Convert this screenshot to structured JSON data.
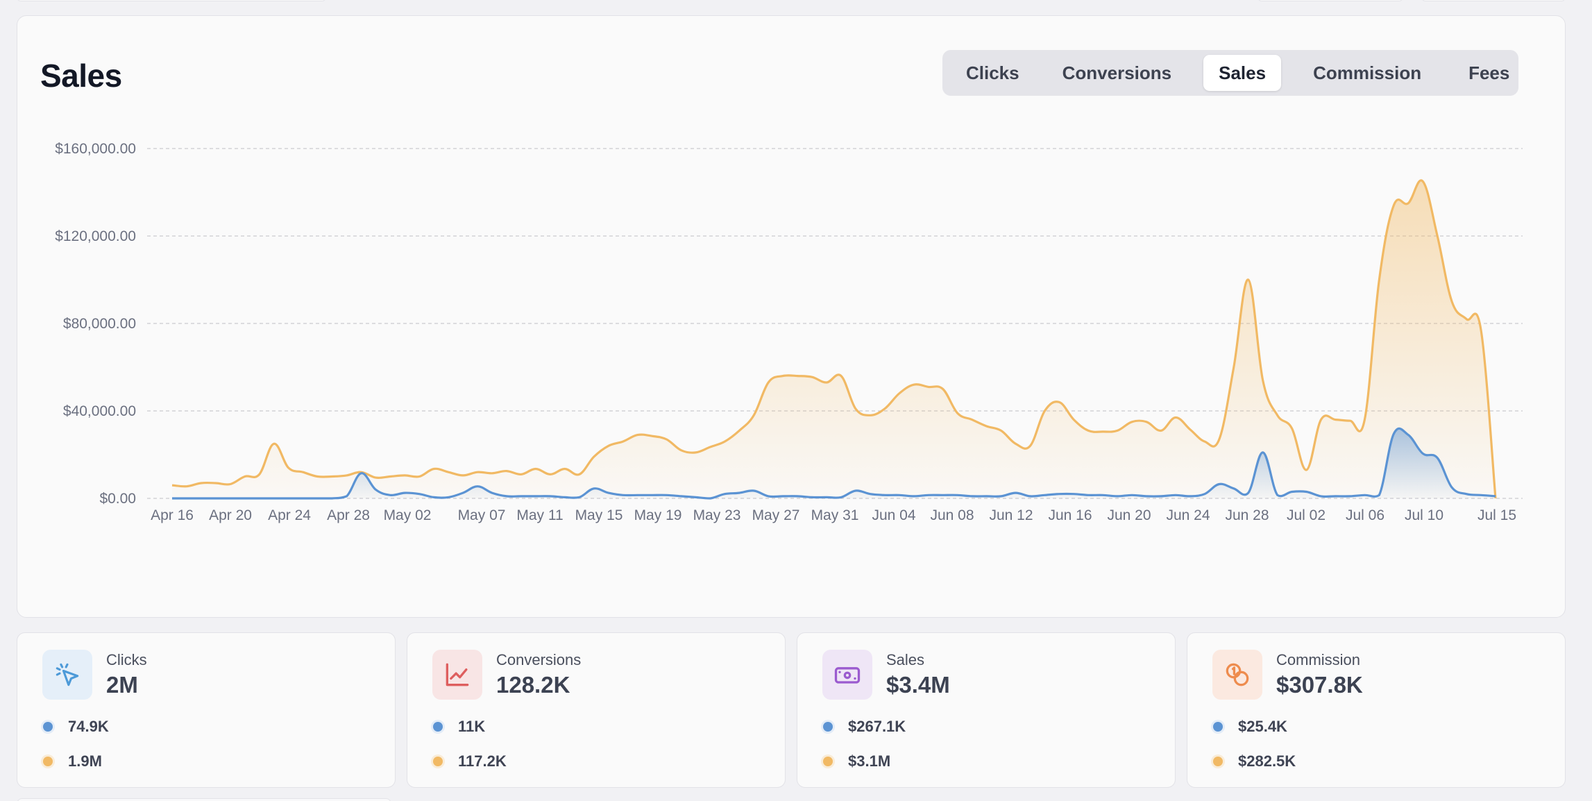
{
  "card": {
    "title": "Sales"
  },
  "tabs": [
    {
      "label": "Clicks"
    },
    {
      "label": "Conversions"
    },
    {
      "label": "Sales",
      "active": true
    },
    {
      "label": "Commission"
    },
    {
      "label": "Fees"
    }
  ],
  "colors": {
    "series_blue": "#5b93d3",
    "series_orange": "#f1b964"
  },
  "chart_data": {
    "type": "area",
    "title": "",
    "ylim": [
      0,
      160000
    ],
    "y_ticks": [
      "$160,000.00",
      "$120,000.00",
      "$80,000.00",
      "$40,000.00",
      "$0.00"
    ],
    "x_ticks": [
      "Apr 16",
      "Apr 20",
      "Apr 24",
      "Apr 28",
      "May 02",
      "May 07",
      "May 11",
      "May 15",
      "May 19",
      "May 23",
      "May 27",
      "May 31",
      "Jun 04",
      "Jun 08",
      "Jun 12",
      "Jun 16",
      "Jun 20",
      "Jun 24",
      "Jun 28",
      "Jul 02",
      "Jul 06",
      "Jul 10",
      "Jul 15"
    ],
    "grid": true,
    "series": [
      {
        "color": "#f1b964",
        "values": [
          6000,
          5500,
          7000,
          7000,
          6500,
          10000,
          11000,
          25000,
          14000,
          12000,
          10000,
          10000,
          10500,
          12000,
          9500,
          10000,
          10500,
          10000,
          13500,
          12000,
          10500,
          12000,
          11500,
          12500,
          11000,
          13500,
          11000,
          13500,
          11000,
          19000,
          24000,
          26000,
          29000,
          28500,
          27000,
          22000,
          21000,
          23500,
          26000,
          31000,
          38000,
          53000,
          56000,
          56000,
          55500,
          53000,
          56000,
          41000,
          38000,
          41000,
          48000,
          52000,
          51000,
          50000,
          39000,
          36000,
          33000,
          31000,
          25000,
          24000,
          40000,
          44000,
          36000,
          31000,
          30500,
          31000,
          35000,
          35000,
          31000,
          37000,
          31500,
          26000,
          27000,
          60000,
          100000,
          54000,
          38000,
          32000,
          13000,
          36000,
          36000,
          35500,
          36000,
          100000,
          134000,
          135000,
          145000,
          120000,
          90000,
          82000,
          77000,
          0
        ]
      },
      {
        "color": "#5b93d3",
        "values": [
          0,
          0,
          0,
          0,
          0,
          0,
          0,
          0,
          0,
          0,
          0,
          0,
          1000,
          11500,
          4000,
          1500,
          2500,
          2000,
          500,
          500,
          2500,
          5500,
          2500,
          1000,
          1000,
          1000,
          1000,
          500,
          500,
          4500,
          2500,
          1500,
          1500,
          1500,
          1500,
          1000,
          500,
          0,
          2000,
          2500,
          3500,
          1000,
          1000,
          1000,
          500,
          500,
          500,
          3500,
          2000,
          1500,
          1500,
          1000,
          1500,
          1500,
          1500,
          1000,
          1000,
          1000,
          2500,
          1000,
          1500,
          2000,
          2000,
          1500,
          1500,
          1000,
          1500,
          1000,
          1000,
          1500,
          1000,
          2000,
          6500,
          4500,
          2500,
          21000,
          1500,
          3000,
          3000,
          1000,
          1000,
          1000,
          1500,
          1500,
          29500,
          29000,
          20500,
          18500,
          5000,
          2000,
          1500,
          1000
        ]
      }
    ]
  },
  "stats": [
    {
      "label": "Clicks",
      "value": "2M",
      "blue_value": "74.9K",
      "orange_value": "1.9M",
      "icon": "cursor-click-icon"
    },
    {
      "label": "Conversions",
      "value": "128.2K",
      "blue_value": "11K",
      "orange_value": "117.2K",
      "icon": "chart-line-icon"
    },
    {
      "label": "Sales",
      "value": "$3.4M",
      "blue_value": "$267.1K",
      "orange_value": "$3.1M",
      "icon": "cash-icon"
    },
    {
      "label": "Commission",
      "value": "$307.8K",
      "blue_value": "$25.4K",
      "orange_value": "$282.5K",
      "icon": "coins-icon"
    }
  ]
}
